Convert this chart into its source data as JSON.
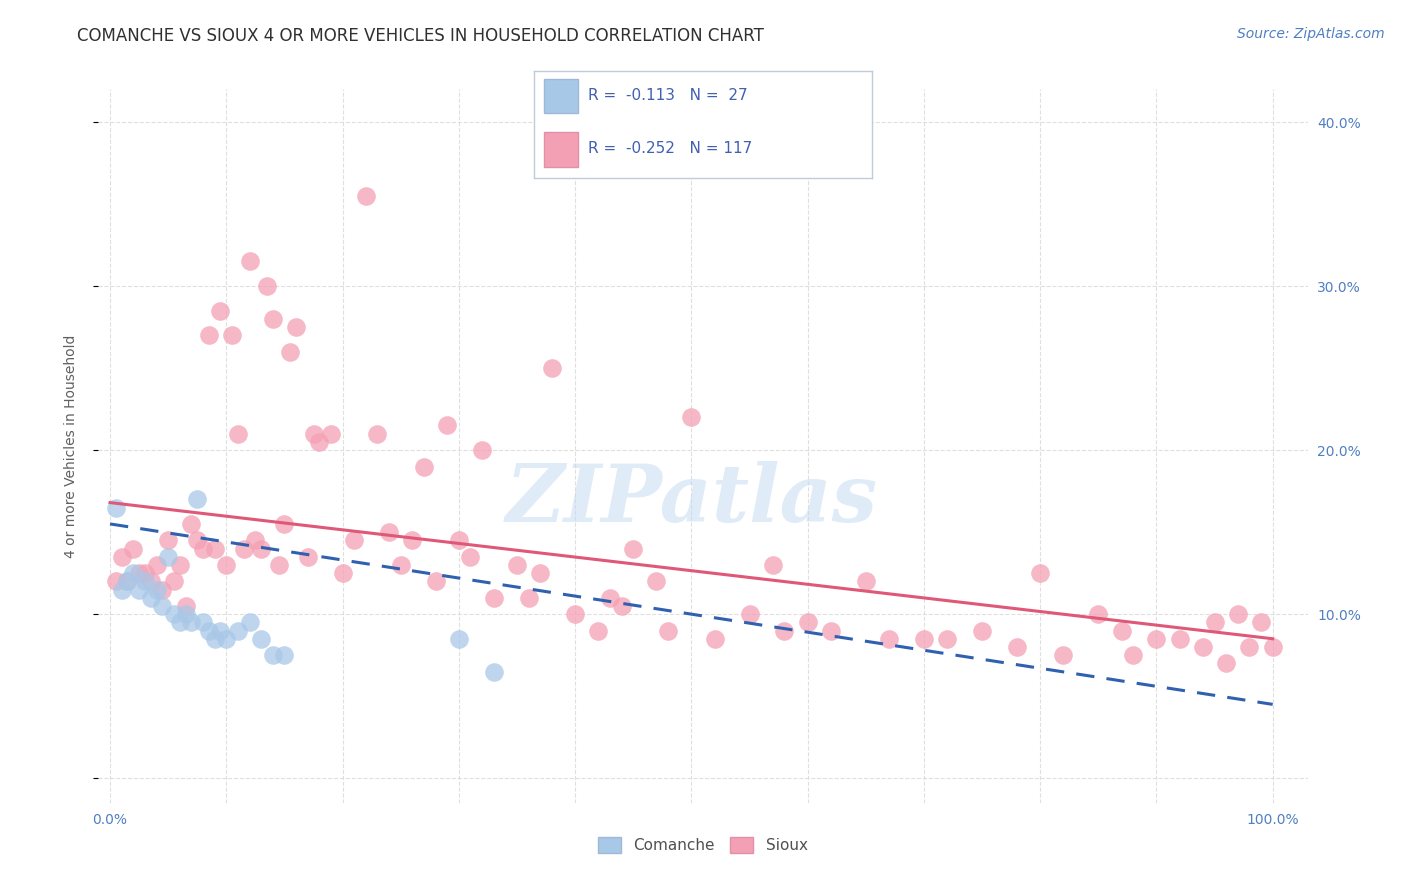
{
  "title": "COMANCHE VS SIOUX 4 OR MORE VEHICLES IN HOUSEHOLD CORRELATION CHART",
  "source": "Source: ZipAtlas.com",
  "ylabel": "4 or more Vehicles in Household",
  "comanche_x": [
    0.5,
    1.0,
    1.5,
    2.0,
    2.5,
    3.0,
    3.5,
    4.0,
    4.5,
    5.0,
    5.5,
    6.0,
    6.5,
    7.0,
    7.5,
    8.0,
    8.5,
    9.0,
    9.5,
    10.0,
    11.0,
    12.0,
    13.0,
    14.0,
    15.0,
    30.0,
    33.0
  ],
  "comanche_y": [
    16.5,
    11.5,
    12.0,
    12.5,
    11.5,
    12.0,
    11.0,
    11.5,
    10.5,
    13.5,
    10.0,
    9.5,
    10.0,
    9.5,
    17.0,
    9.5,
    9.0,
    8.5,
    9.0,
    8.5,
    9.0,
    9.5,
    8.5,
    7.5,
    7.5,
    8.5,
    6.5
  ],
  "sioux_x": [
    0.5,
    1.0,
    1.5,
    2.0,
    2.5,
    3.0,
    3.5,
    4.0,
    4.5,
    5.0,
    5.5,
    6.0,
    6.5,
    7.0,
    7.5,
    8.0,
    8.5,
    9.0,
    9.5,
    10.0,
    10.5,
    11.0,
    11.5,
    12.0,
    12.5,
    13.0,
    13.5,
    14.0,
    14.5,
    15.0,
    15.5,
    16.0,
    17.0,
    17.5,
    18.0,
    19.0,
    20.0,
    21.0,
    22.0,
    23.0,
    24.0,
    25.0,
    26.0,
    27.0,
    28.0,
    29.0,
    30.0,
    31.0,
    32.0,
    33.0,
    35.0,
    36.0,
    37.0,
    38.0,
    40.0,
    42.0,
    43.0,
    44.0,
    45.0,
    47.0,
    48.0,
    50.0,
    52.0,
    55.0,
    57.0,
    58.0,
    60.0,
    62.0,
    65.0,
    67.0,
    70.0,
    72.0,
    75.0,
    78.0,
    80.0,
    82.0,
    85.0,
    87.0,
    88.0,
    90.0,
    92.0,
    94.0,
    95.0,
    96.0,
    97.0,
    98.0,
    99.0,
    100.0
  ],
  "sioux_y": [
    12.0,
    13.5,
    12.0,
    14.0,
    12.5,
    12.5,
    12.0,
    13.0,
    11.5,
    14.5,
    12.0,
    13.0,
    10.5,
    15.5,
    14.5,
    14.0,
    27.0,
    14.0,
    28.5,
    13.0,
    27.0,
    21.0,
    14.0,
    31.5,
    14.5,
    14.0,
    30.0,
    28.0,
    13.0,
    15.5,
    26.0,
    27.5,
    13.5,
    21.0,
    20.5,
    21.0,
    12.5,
    14.5,
    35.5,
    21.0,
    15.0,
    13.0,
    14.5,
    19.0,
    12.0,
    21.5,
    14.5,
    13.5,
    20.0,
    11.0,
    13.0,
    11.0,
    12.5,
    25.0,
    10.0,
    9.0,
    11.0,
    10.5,
    14.0,
    12.0,
    9.0,
    22.0,
    8.5,
    10.0,
    13.0,
    9.0,
    9.5,
    9.0,
    12.0,
    8.5,
    8.5,
    8.5,
    9.0,
    8.0,
    12.5,
    7.5,
    10.0,
    9.0,
    7.5,
    8.5,
    8.5,
    8.0,
    9.5,
    7.0,
    10.0,
    8.0,
    9.5,
    8.0
  ],
  "comanche_color": "#a8c8e8",
  "sioux_color": "#f4a0b4",
  "comanche_line_color": "#3060b0",
  "sioux_line_color": "#e05878",
  "background_color": "#ffffff",
  "watermark": "ZIPatlas",
  "title_fontsize": 12,
  "axis_label_fontsize": 10,
  "tick_fontsize": 10,
  "source_fontsize": 10,
  "tick_color": "#5080c0",
  "ylabel_color": "#606060"
}
